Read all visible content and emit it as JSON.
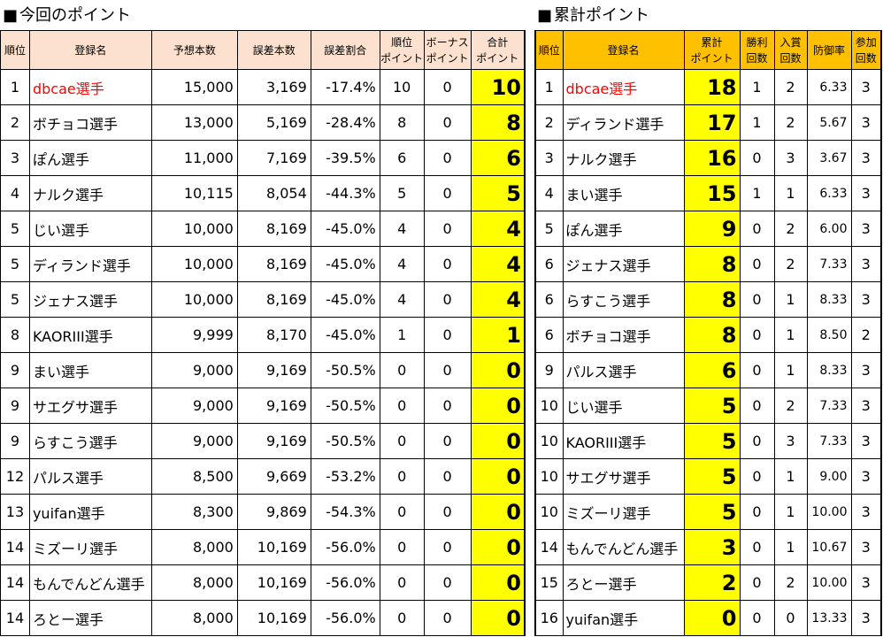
{
  "left": {
    "title": "今回のポイント",
    "headers": [
      "順位",
      "登録名",
      "予想本数",
      "誤差本数",
      "誤差割合",
      "順位\nポイント",
      "ボーナス\nポイント",
      "合計\nポイント"
    ],
    "rows": [
      {
        "rank": "1",
        "name": "dbcae選手",
        "pred": "15,000",
        "err": "3,169",
        "ratio": "-17.4%",
        "rp": "10",
        "bp": "0",
        "total": "10",
        "highlight": true
      },
      {
        "rank": "2",
        "name": "ボチョコ選手",
        "pred": "13,000",
        "err": "5,169",
        "ratio": "-28.4%",
        "rp": "8",
        "bp": "0",
        "total": "8"
      },
      {
        "rank": "3",
        "name": "ぽん選手",
        "pred": "11,000",
        "err": "7,169",
        "ratio": "-39.5%",
        "rp": "6",
        "bp": "0",
        "total": "6"
      },
      {
        "rank": "4",
        "name": "ナルク選手",
        "pred": "10,115",
        "err": "8,054",
        "ratio": "-44.3%",
        "rp": "5",
        "bp": "0",
        "total": "5"
      },
      {
        "rank": "5",
        "name": "じい選手",
        "pred": "10,000",
        "err": "8,169",
        "ratio": "-45.0%",
        "rp": "4",
        "bp": "0",
        "total": "4"
      },
      {
        "rank": "5",
        "name": "ディランド選手",
        "pred": "10,000",
        "err": "8,169",
        "ratio": "-45.0%",
        "rp": "4",
        "bp": "0",
        "total": "4"
      },
      {
        "rank": "5",
        "name": "ジェナス選手",
        "pred": "10,000",
        "err": "8,169",
        "ratio": "-45.0%",
        "rp": "4",
        "bp": "0",
        "total": "4"
      },
      {
        "rank": "8",
        "name": "KAORIII選手",
        "pred": "9,999",
        "err": "8,170",
        "ratio": "-45.0%",
        "rp": "1",
        "bp": "0",
        "total": "1"
      },
      {
        "rank": "9",
        "name": "まい選手",
        "pred": "9,000",
        "err": "9,169",
        "ratio": "-50.5%",
        "rp": "0",
        "bp": "0",
        "total": "0"
      },
      {
        "rank": "9",
        "name": "サエグサ選手",
        "pred": "9,000",
        "err": "9,169",
        "ratio": "-50.5%",
        "rp": "0",
        "bp": "0",
        "total": "0"
      },
      {
        "rank": "9",
        "name": "らすこう選手",
        "pred": "9,000",
        "err": "9,169",
        "ratio": "-50.5%",
        "rp": "0",
        "bp": "0",
        "total": "0"
      },
      {
        "rank": "12",
        "name": "パルス選手",
        "pred": "8,500",
        "err": "9,669",
        "ratio": "-53.2%",
        "rp": "0",
        "bp": "0",
        "total": "0"
      },
      {
        "rank": "13",
        "name": "yuifan選手",
        "pred": "8,300",
        "err": "9,869",
        "ratio": "-54.3%",
        "rp": "0",
        "bp": "0",
        "total": "0"
      },
      {
        "rank": "14",
        "name": "ミズーリ選手",
        "pred": "8,000",
        "err": "10,169",
        "ratio": "-56.0%",
        "rp": "0",
        "bp": "0",
        "total": "0"
      },
      {
        "rank": "14",
        "name": "もんでんどん選手",
        "pred": "8,000",
        "err": "10,169",
        "ratio": "-56.0%",
        "rp": "0",
        "bp": "0",
        "total": "0"
      },
      {
        "rank": "14",
        "name": "ろとー選手",
        "pred": "8,000",
        "err": "10,169",
        "ratio": "-56.0%",
        "rp": "0",
        "bp": "0",
        "total": "0"
      }
    ]
  },
  "right": {
    "title": "累計ポイント",
    "headers": [
      "順位",
      "登録名",
      "累計\nポイント",
      "勝利\n回数",
      "入賞\n回数",
      "防御率",
      "参加\n回数"
    ],
    "rows": [
      {
        "rank": "1",
        "name": "dbcae選手",
        "total": "18",
        "wins": "1",
        "places": "2",
        "era": "6.33",
        "entries": "3",
        "highlight": true
      },
      {
        "rank": "2",
        "name": "ディランド選手",
        "total": "17",
        "wins": "1",
        "places": "2",
        "era": "5.67",
        "entries": "3"
      },
      {
        "rank": "3",
        "name": "ナルク選手",
        "total": "16",
        "wins": "0",
        "places": "3",
        "era": "3.67",
        "entries": "3"
      },
      {
        "rank": "4",
        "name": "まい選手",
        "total": "15",
        "wins": "1",
        "places": "1",
        "era": "6.33",
        "entries": "3"
      },
      {
        "rank": "5",
        "name": "ぽん選手",
        "total": "9",
        "wins": "0",
        "places": "2",
        "era": "6.00",
        "entries": "3"
      },
      {
        "rank": "6",
        "name": "ジェナス選手",
        "total": "8",
        "wins": "0",
        "places": "2",
        "era": "7.33",
        "entries": "3"
      },
      {
        "rank": "6",
        "name": "らすこう選手",
        "total": "8",
        "wins": "0",
        "places": "1",
        "era": "8.33",
        "entries": "3"
      },
      {
        "rank": "6",
        "name": "ボチョコ選手",
        "total": "8",
        "wins": "0",
        "places": "1",
        "era": "8.50",
        "entries": "2"
      },
      {
        "rank": "9",
        "name": "パルス選手",
        "total": "6",
        "wins": "0",
        "places": "1",
        "era": "8.33",
        "entries": "3"
      },
      {
        "rank": "10",
        "name": "じい選手",
        "total": "5",
        "wins": "0",
        "places": "2",
        "era": "7.33",
        "entries": "3"
      },
      {
        "rank": "10",
        "name": "KAORIII選手",
        "total": "5",
        "wins": "0",
        "places": "3",
        "era": "7.33",
        "entries": "3"
      },
      {
        "rank": "10",
        "name": "サエグサ選手",
        "total": "5",
        "wins": "0",
        "places": "1",
        "era": "9.00",
        "entries": "3"
      },
      {
        "rank": "10",
        "name": "ミズーリ選手",
        "total": "5",
        "wins": "0",
        "places": "1",
        "era": "10.00",
        "entries": "3"
      },
      {
        "rank": "14",
        "name": "もんでんどん選手",
        "total": "3",
        "wins": "0",
        "places": "1",
        "era": "10.67",
        "entries": "3"
      },
      {
        "rank": "15",
        "name": "ろとー選手",
        "total": "2",
        "wins": "0",
        "places": "2",
        "era": "10.00",
        "entries": "3"
      },
      {
        "rank": "16",
        "name": "yuifan選手",
        "total": "0",
        "wins": "0",
        "places": "0",
        "era": "13.33",
        "entries": "3"
      }
    ]
  },
  "colors": {
    "left_header": "#fde1cf",
    "right_header": "#ffc000",
    "total_cell": "#ffff00",
    "highlight_text": "#ff0000"
  }
}
